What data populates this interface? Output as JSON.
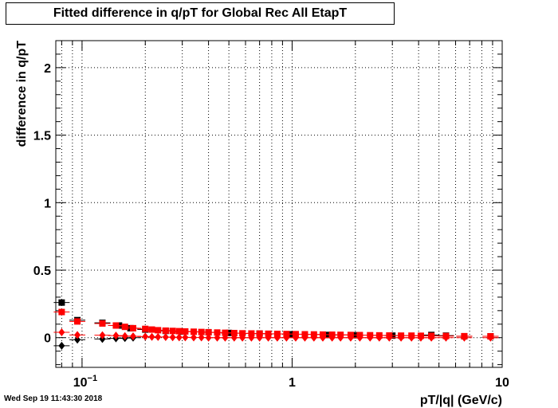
{
  "footer": {
    "timestamp": "Wed Sep 19 11:43:30 2018"
  },
  "colors": {
    "series_red": "#ff0000",
    "series_black": "#000000",
    "grid": "#000000"
  },
  "chart_data": {
    "type": "scatter",
    "title": "Fitted difference in q/pT for Global Rec All EtapT",
    "xlabel": "pT/|q| (GeV/c)",
    "ylabel": "difference in q/pT",
    "xscale": "log",
    "xlim": [
      0.075,
      10
    ],
    "ylim": [
      -0.22,
      2.2
    ],
    "grid": true,
    "x_ticks": [
      {
        "value": 0.1,
        "label": "10",
        "exp": "−1"
      },
      {
        "value": 1,
        "label": "1",
        "exp": ""
      },
      {
        "value": 10,
        "label": "10",
        "exp": ""
      }
    ],
    "y_ticks": [
      {
        "value": 0,
        "label": "0"
      },
      {
        "value": 0.5,
        "label": "0.5"
      },
      {
        "value": 1,
        "label": "1"
      },
      {
        "value": 1.5,
        "label": "1.5"
      },
      {
        "value": 2,
        "label": "2"
      }
    ],
    "series": [
      {
        "marker": "square",
        "color": "#000000",
        "points": [
          [
            0.08,
            0.26
          ],
          [
            0.095,
            0.13
          ],
          [
            0.125,
            0.11
          ],
          [
            0.15,
            0.09
          ],
          [
            0.17,
            0.07
          ],
          [
            0.2,
            0.06
          ],
          [
            0.25,
            0.05
          ],
          [
            0.3,
            0.045
          ],
          [
            0.4,
            0.04
          ],
          [
            0.5,
            0.035
          ],
          [
            0.7,
            0.03
          ],
          [
            1.0,
            0.025
          ],
          [
            1.5,
            0.02
          ],
          [
            2.0,
            0.018
          ],
          [
            3.0,
            0.015
          ],
          [
            4.6,
            0.02
          ],
          [
            5.4,
            0.015
          ],
          [
            6.6,
            0.01
          ],
          [
            8.8,
            0.01
          ]
        ]
      },
      {
        "marker": "square",
        "color": "#ff0000",
        "points": [
          [
            0.08,
            0.19
          ],
          [
            0.095,
            0.12
          ],
          [
            0.125,
            0.105
          ],
          [
            0.145,
            0.09
          ],
          [
            0.16,
            0.08
          ],
          [
            0.175,
            0.07
          ],
          [
            0.2,
            0.065
          ],
          [
            0.215,
            0.06
          ],
          [
            0.23,
            0.055
          ],
          [
            0.25,
            0.052
          ],
          [
            0.27,
            0.05
          ],
          [
            0.29,
            0.048
          ],
          [
            0.31,
            0.046
          ],
          [
            0.34,
            0.044
          ],
          [
            0.37,
            0.042
          ],
          [
            0.4,
            0.04
          ],
          [
            0.44,
            0.038
          ],
          [
            0.48,
            0.036
          ],
          [
            0.53,
            0.034
          ],
          [
            0.58,
            0.032
          ],
          [
            0.64,
            0.031
          ],
          [
            0.7,
            0.03
          ],
          [
            0.77,
            0.029
          ],
          [
            0.85,
            0.028
          ],
          [
            0.94,
            0.027
          ],
          [
            1.04,
            0.026
          ],
          [
            1.15,
            0.025
          ],
          [
            1.27,
            0.024
          ],
          [
            1.4,
            0.023
          ],
          [
            1.55,
            0.022
          ],
          [
            1.7,
            0.021
          ],
          [
            1.9,
            0.02
          ],
          [
            2.1,
            0.019
          ],
          [
            2.35,
            0.018
          ],
          [
            2.6,
            0.017
          ],
          [
            2.9,
            0.016
          ],
          [
            3.3,
            0.015
          ],
          [
            3.7,
            0.015
          ],
          [
            4.1,
            0.014
          ],
          [
            4.6,
            0.013
          ],
          [
            5.4,
            0.012
          ],
          [
            6.6,
            0.011
          ],
          [
            8.8,
            0.01
          ]
        ]
      },
      {
        "marker": "diamond",
        "color": "#000000",
        "points": [
          [
            0.08,
            -0.06
          ],
          [
            0.095,
            -0.015
          ],
          [
            0.125,
            -0.01
          ],
          [
            0.145,
            -0.005
          ],
          [
            0.16,
            -0.003
          ],
          [
            0.175,
            0.0
          ]
        ]
      },
      {
        "marker": "diamond",
        "color": "#ff0000",
        "points": [
          [
            0.08,
            0.04
          ],
          [
            0.095,
            0.02
          ],
          [
            0.125,
            0.018
          ],
          [
            0.145,
            0.015
          ],
          [
            0.16,
            0.012
          ],
          [
            0.175,
            0.01
          ],
          [
            0.2,
            0.008
          ],
          [
            0.215,
            0.006
          ],
          [
            0.23,
            0.005
          ],
          [
            0.25,
            0.004
          ],
          [
            0.27,
            0.003
          ],
          [
            0.29,
            0.002
          ],
          [
            0.31,
            0.002
          ],
          [
            0.34,
            0.001
          ],
          [
            0.37,
            0.001
          ],
          [
            0.4,
            0.0
          ],
          [
            0.44,
            0.0
          ],
          [
            0.48,
            0.0
          ],
          [
            0.53,
            0.0
          ],
          [
            0.58,
            0.0
          ],
          [
            0.64,
            0.0
          ],
          [
            0.7,
            0.0
          ],
          [
            0.77,
            0.0
          ],
          [
            0.85,
            0.0
          ],
          [
            0.94,
            0.0
          ],
          [
            1.04,
            0.0
          ],
          [
            1.15,
            0.0
          ],
          [
            1.27,
            0.0
          ],
          [
            1.4,
            0.0
          ],
          [
            1.55,
            0.0
          ],
          [
            1.7,
            0.0
          ],
          [
            1.9,
            0.0
          ],
          [
            2.1,
            0.0
          ],
          [
            2.35,
            0.0
          ],
          [
            2.6,
            0.0
          ],
          [
            2.9,
            0.0
          ],
          [
            3.3,
            0.0
          ],
          [
            3.7,
            0.0
          ],
          [
            4.1,
            0.0
          ],
          [
            4.6,
            0.0
          ],
          [
            5.4,
            0.0
          ],
          [
            6.6,
            0.0
          ],
          [
            8.8,
            0.0
          ]
        ]
      }
    ]
  }
}
